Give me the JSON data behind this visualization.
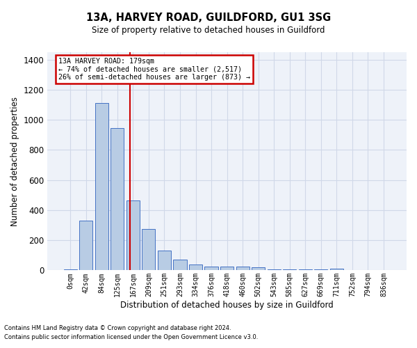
{
  "title": "13A, HARVEY ROAD, GUILDFORD, GU1 3SG",
  "subtitle": "Size of property relative to detached houses in Guildford",
  "xlabel": "Distribution of detached houses by size in Guildford",
  "ylabel": "Number of detached properties",
  "footnote1": "Contains HM Land Registry data © Crown copyright and database right 2024.",
  "footnote2": "Contains public sector information licensed under the Open Government Licence v3.0.",
  "bar_labels": [
    "0sqm",
    "42sqm",
    "84sqm",
    "125sqm",
    "167sqm",
    "209sqm",
    "251sqm",
    "293sqm",
    "334sqm",
    "376sqm",
    "418sqm",
    "460sqm",
    "502sqm",
    "543sqm",
    "585sqm",
    "627sqm",
    "669sqm",
    "711sqm",
    "752sqm",
    "794sqm",
    "836sqm"
  ],
  "bar_values": [
    8,
    330,
    1110,
    945,
    465,
    275,
    130,
    70,
    40,
    25,
    25,
    25,
    20,
    8,
    8,
    8,
    8,
    12,
    0,
    0,
    0
  ],
  "bar_color": "#b8cce4",
  "bar_edge_color": "#4472c4",
  "grid_color": "#d0d8e8",
  "background_color": "#eef2f9",
  "annotation_line1": "13A HARVEY ROAD: 179sqm",
  "annotation_line2": "← 74% of detached houses are smaller (2,517)",
  "annotation_line3": "26% of semi-detached houses are larger (873) →",
  "red_line_color": "#cc0000",
  "annotation_box_edge_color": "#cc0000",
  "ylim": [
    0,
    1450
  ],
  "yticks": [
    0,
    200,
    400,
    600,
    800,
    1000,
    1200,
    1400
  ],
  "red_line_x": 3.786
}
